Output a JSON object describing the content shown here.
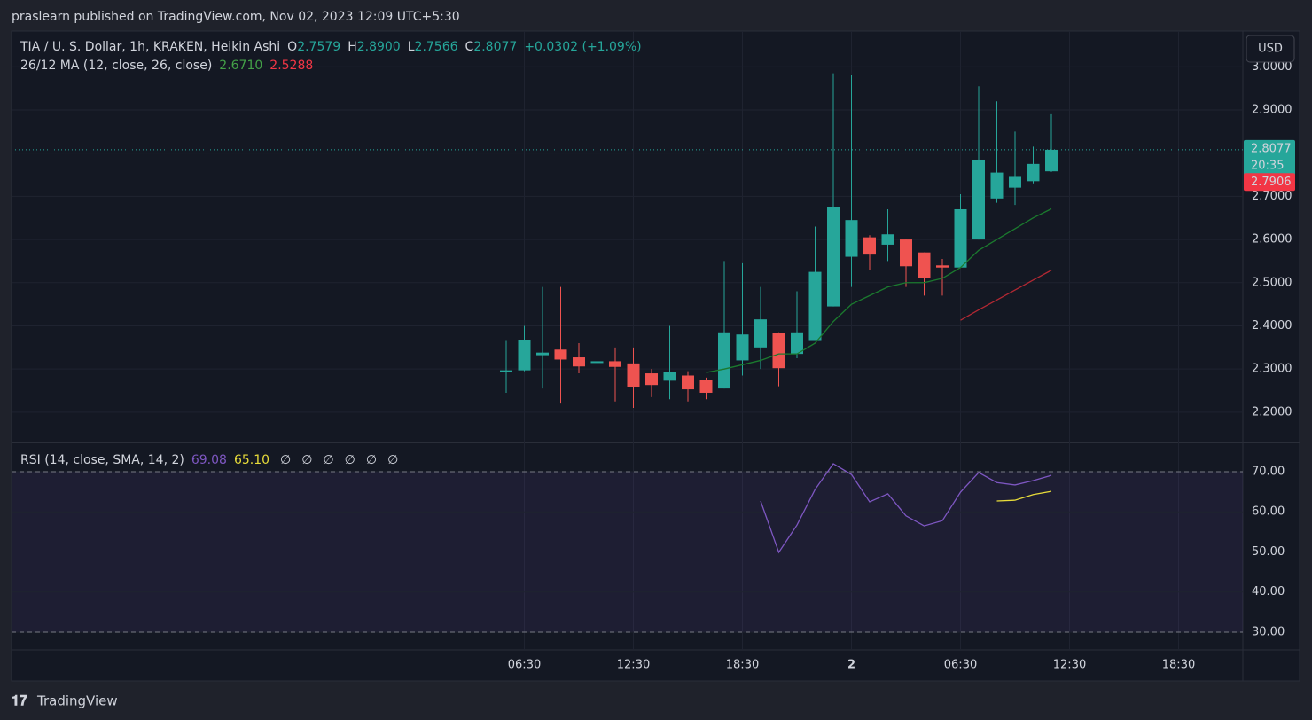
{
  "header": {
    "text": "praslearn published on TradingView.com, Nov 02, 2023 12:09 UTC+5:30"
  },
  "footer": {
    "logo_text": "TradingView"
  },
  "currency_button": "USD",
  "chart_data": [
    {
      "type": "candlestick",
      "legend": {
        "symbol": "TIA / U. S. Dollar, 1h, KRAKEN, Heikin Ashi",
        "ohlc": [
          {
            "label": "O",
            "value": "2.7579"
          },
          {
            "label": "H",
            "value": "2.8900"
          },
          {
            "label": "L",
            "value": "2.7566"
          },
          {
            "label": "C",
            "value": "2.8077"
          }
        ],
        "change": "+0.0302 (+1.09%)",
        "indicator": "26/12 MA (12, close, 26, close)",
        "indicator_values": [
          "2.6710",
          "2.5288"
        ]
      },
      "categories": [
        null,
        "06:30",
        null,
        null,
        null,
        null,
        null,
        "12:30",
        null,
        null,
        null,
        null,
        null,
        "18:30",
        null,
        null,
        null,
        null,
        null,
        "2",
        null,
        null,
        null,
        null,
        null,
        "06:30",
        null,
        null,
        null,
        null,
        null,
        "12:30",
        null,
        null,
        null,
        null,
        null,
        "18:30"
      ],
      "open": [
        2.293,
        2.297,
        2.332,
        2.345,
        2.327,
        2.314,
        2.318,
        2.313,
        2.29,
        2.273,
        2.285,
        2.275,
        2.255,
        2.32,
        2.35,
        2.383,
        2.335,
        2.365,
        2.445,
        2.56,
        2.605,
        2.588,
        2.6,
        2.57,
        2.54,
        2.535,
        2.6,
        2.695,
        2.72,
        2.735,
        2.7579,
        null,
        null,
        null,
        null,
        null,
        null,
        null
      ],
      "high": [
        2.365,
        2.4,
        2.49,
        2.49,
        2.36,
        2.4,
        2.35,
        2.35,
        2.3,
        2.4,
        2.295,
        2.28,
        2.55,
        2.545,
        2.49,
        2.385,
        2.48,
        2.63,
        2.985,
        2.98,
        2.61,
        2.67,
        2.6,
        2.57,
        2.555,
        2.705,
        2.955,
        2.92,
        2.85,
        2.815,
        2.89,
        null,
        null,
        null,
        null,
        null,
        null,
        null
      ],
      "low": [
        2.245,
        2.295,
        2.255,
        2.22,
        2.29,
        2.29,
        2.225,
        2.21,
        2.235,
        2.23,
        2.225,
        2.23,
        2.255,
        2.285,
        2.3,
        2.26,
        2.325,
        2.365,
        2.445,
        2.49,
        2.53,
        2.55,
        2.49,
        2.47,
        2.47,
        2.535,
        2.6,
        2.685,
        2.68,
        2.73,
        2.7566,
        null,
        null,
        null,
        null,
        null,
        null,
        null
      ],
      "close": [
        2.297,
        2.368,
        2.338,
        2.322,
        2.306,
        2.318,
        2.305,
        2.258,
        2.263,
        2.293,
        2.253,
        2.245,
        2.385,
        2.38,
        2.415,
        2.302,
        2.385,
        2.525,
        2.675,
        2.645,
        2.565,
        2.612,
        2.538,
        2.51,
        2.535,
        2.67,
        2.785,
        2.755,
        2.745,
        2.775,
        2.8077,
        null,
        null,
        null,
        null,
        null,
        null,
        null
      ],
      "up_color": "#26a69a",
      "down_color": "#ef5350",
      "series": [
        {
          "color": "#1b7a2e",
          "values": [
            null,
            null,
            null,
            null,
            null,
            null,
            null,
            null,
            null,
            null,
            null,
            2.292,
            2.3,
            2.31,
            2.32,
            2.335,
            2.335,
            2.36,
            2.41,
            2.45,
            2.47,
            2.49,
            2.5,
            2.5,
            2.51,
            2.535,
            2.575,
            2.6,
            2.625,
            2.65,
            2.671,
            null,
            null,
            null,
            null,
            null,
            null,
            null
          ]
        },
        {
          "color": "#b22833",
          "values": [
            null,
            null,
            null,
            null,
            null,
            null,
            null,
            null,
            null,
            null,
            null,
            null,
            null,
            null,
            null,
            null,
            null,
            null,
            null,
            null,
            null,
            null,
            null,
            null,
            null,
            2.413,
            2.437,
            2.46,
            2.483,
            2.506,
            2.5288,
            null,
            null,
            null,
            null,
            null,
            null,
            null
          ]
        }
      ],
      "price_markers": [
        {
          "value": 2.8077,
          "label": "2.8077",
          "sub": "20:35",
          "color": "#26a69a"
        },
        {
          "value": 2.7906,
          "label": "2.7906",
          "color": "#f23645"
        }
      ],
      "ylim": [
        2.132,
        3.0827
      ],
      "yticks": [
        {
          "value": 2.2,
          "label": "2.2000"
        },
        {
          "value": 2.3,
          "label": "2.3000"
        },
        {
          "value": 2.4,
          "label": "2.4000"
        },
        {
          "value": 2.5,
          "label": "2.5000"
        },
        {
          "value": 2.6,
          "label": "2.6000"
        },
        {
          "value": 2.7,
          "label": "2.7000"
        },
        {
          "value": 2.8,
          "label": "2.8000"
        },
        {
          "value": 2.9,
          "label": "2.9000"
        },
        {
          "value": 3.0,
          "label": "3.0000"
        }
      ],
      "grid": true
    },
    {
      "type": "line",
      "legend": {
        "indicator": "RSI (14, close, SMA, 14, 2)",
        "indicator_values": [
          "69.08",
          "65.10"
        ],
        "empty_marks": [
          "∅",
          "∅",
          "∅",
          "∅",
          "∅",
          "∅"
        ]
      },
      "series": [
        {
          "color": "#7e57c2",
          "values": [
            null,
            null,
            null,
            null,
            null,
            null,
            null,
            null,
            null,
            null,
            null,
            null,
            null,
            null,
            62.7,
            49.9,
            56.7,
            65.6,
            72.0,
            69.3,
            62.5,
            64.5,
            59.0,
            56.5,
            57.8,
            64.9,
            69.8,
            67.3,
            66.7,
            67.8,
            69.08,
            null,
            null,
            null,
            null,
            null,
            null,
            null
          ]
        },
        {
          "color": "#e8dc3a",
          "values": [
            null,
            null,
            null,
            null,
            null,
            null,
            null,
            null,
            null,
            null,
            null,
            null,
            null,
            null,
            null,
            null,
            null,
            null,
            null,
            null,
            null,
            null,
            null,
            null,
            null,
            null,
            null,
            62.7,
            62.9,
            64.3,
            65.1,
            null,
            null,
            null,
            null,
            null,
            null,
            null
          ]
        }
      ],
      "band_lines": [
        70,
        50,
        30
      ],
      "band_fill": [
        30,
        70
      ],
      "ylim": [
        25.58,
        77.07
      ],
      "yticks": [
        {
          "value": 30,
          "label": "30.00"
        },
        {
          "value": 40,
          "label": "40.00"
        },
        {
          "value": 50,
          "label": "50.00"
        },
        {
          "value": 60,
          "label": "60.00"
        },
        {
          "value": 70,
          "label": "70.00"
        }
      ],
      "grid": true
    }
  ]
}
